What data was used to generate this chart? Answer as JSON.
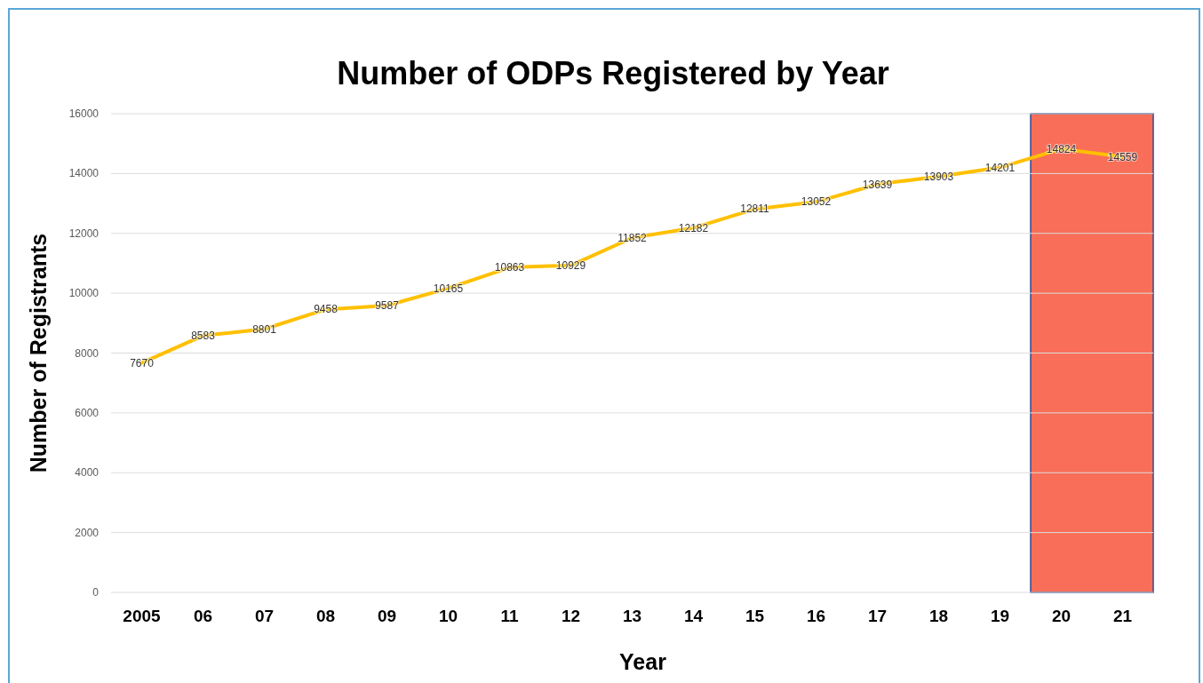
{
  "chart_data": {
    "type": "line",
    "title": "Number of ODPs Registered by Year",
    "xlabel": "Year",
    "ylabel": "Number of Registrants",
    "categories": [
      "2005",
      "06",
      "07",
      "08",
      "09",
      "10",
      "11",
      "12",
      "13",
      "14",
      "15",
      "16",
      "17",
      "18",
      "19",
      "20",
      "21"
    ],
    "series": [
      {
        "color": "#ffc000",
        "values": [
          7670,
          8583,
          8801,
          9458,
          9587,
          10165,
          10863,
          10929,
          11852,
          12182,
          12811,
          13052,
          13639,
          13903,
          14201,
          14824,
          14559
        ]
      }
    ],
    "ylim": [
      0,
      16000
    ],
    "yticks": [
      0,
      2000,
      4000,
      6000,
      8000,
      10000,
      12000,
      14000,
      16000
    ],
    "grid": "y",
    "data_labels": true,
    "marker": "none",
    "line_style": "solid",
    "bands": [
      {
        "axis": "x",
        "from": "20",
        "to": "21",
        "color": "#f96e58"
      }
    ]
  }
}
